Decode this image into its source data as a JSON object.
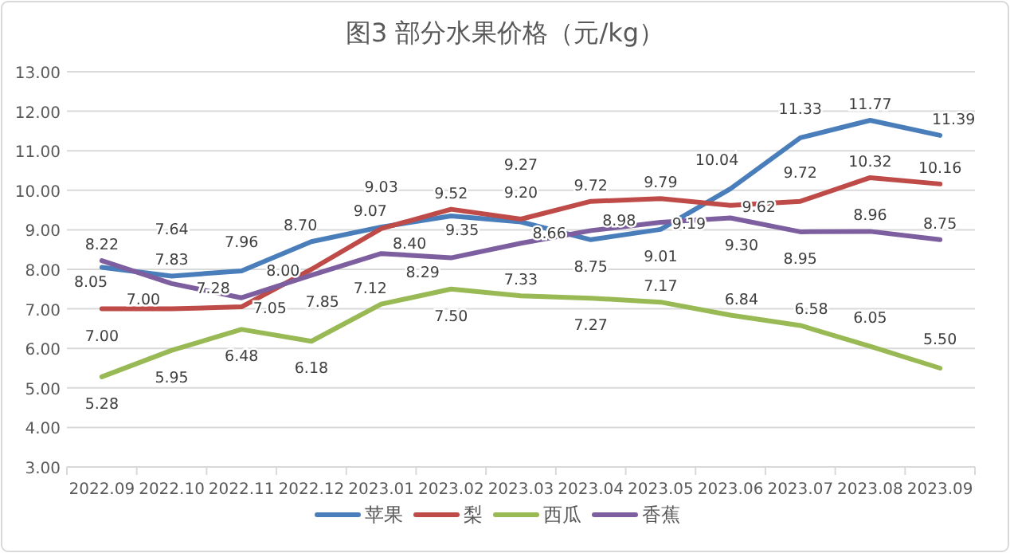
{
  "chart_data": {
    "type": "line",
    "title": "图3  部分水果价格（元/kg）",
    "categories": [
      "2022.09",
      "2022.10",
      "2022.11",
      "2022.12",
      "2023.01",
      "2023.02",
      "2023.03",
      "2023.04",
      "2023.05",
      "2023.06",
      "2023.07",
      "2023.08",
      "2023.09"
    ],
    "series": [
      {
        "name": "苹果",
        "color": "#4a7ebb",
        "values": [
          8.05,
          7.83,
          7.96,
          8.7,
          9.07,
          9.35,
          9.2,
          8.75,
          9.01,
          10.04,
          11.33,
          11.77,
          11.39
        ],
        "value_labels": [
          "8.05",
          "7.83",
          "7.96",
          "8.70",
          "9.07",
          "9.35",
          "9.20",
          "8.75",
          "9.01",
          "10.04",
          "11.33",
          "11.77",
          "11.39"
        ]
      },
      {
        "name": "梨",
        "color": "#be4b48",
        "values": [
          7.0,
          7.0,
          7.05,
          8.0,
          9.03,
          9.52,
          9.27,
          9.72,
          9.79,
          9.62,
          9.72,
          10.32,
          10.16
        ],
        "value_labels": [
          "7.00",
          "7.00",
          "7.05",
          "8.00",
          "9.03",
          "9.52",
          "9.27",
          "9.72",
          "9.79",
          "9.62",
          "9.72",
          "10.32",
          "10.16"
        ]
      },
      {
        "name": "西瓜",
        "color": "#98b954",
        "values": [
          5.28,
          5.95,
          6.48,
          6.18,
          7.12,
          7.5,
          7.33,
          7.27,
          7.17,
          6.84,
          6.58,
          6.05,
          5.5
        ],
        "value_labels": [
          "5.28",
          "5.95",
          "6.48",
          "6.18",
          "7.12",
          "7.50",
          "7.33",
          "7.27",
          "7.17",
          "6.84",
          "6.58",
          "6.05",
          "5.50"
        ]
      },
      {
        "name": "香蕉",
        "color": "#7d5fa0",
        "values": [
          8.22,
          7.64,
          7.28,
          7.85,
          8.4,
          8.29,
          8.66,
          8.98,
          9.19,
          9.3,
          8.95,
          8.96,
          8.75
        ],
        "value_labels": [
          "8.22",
          "7.64",
          "7.28",
          "7.85",
          "8.40",
          "8.29",
          "8.66",
          "8.98",
          "9.19",
          "9.30",
          "8.95",
          "8.96",
          "8.75"
        ]
      }
    ],
    "ylim": [
      3,
      13
    ],
    "yticks": [
      {
        "value": 3,
        "label": "3.00"
      },
      {
        "value": 4,
        "label": "4.00"
      },
      {
        "value": 5,
        "label": "5.00"
      },
      {
        "value": 6,
        "label": "6.00"
      },
      {
        "value": 7,
        "label": "7.00"
      },
      {
        "value": 8,
        "label": "8.00"
      },
      {
        "value": 9,
        "label": "9.00"
      },
      {
        "value": 10,
        "label": "10.00"
      },
      {
        "value": 11,
        "label": "11.00"
      },
      {
        "value": 12,
        "label": "12.00"
      },
      {
        "value": 13,
        "label": "13.00"
      }
    ],
    "grid": "y",
    "legend": "bottom",
    "data_labels": true,
    "marker": "none",
    "line_style": "solid"
  }
}
